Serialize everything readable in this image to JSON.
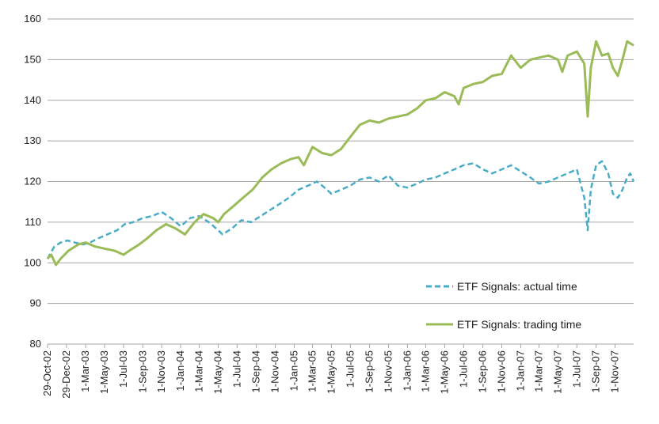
{
  "chart_data": {
    "type": "line",
    "title": "",
    "xlabel": "",
    "ylabel": "",
    "ylim": [
      80,
      160
    ],
    "yticks": [
      80,
      90,
      100,
      110,
      120,
      130,
      140,
      150,
      160
    ],
    "xlim": [
      "2002-10-29",
      "2007-12-31"
    ],
    "xtick_labels": [
      {
        "date": "2002-10-29",
        "label": "29-Oct-02"
      },
      {
        "date": "2002-12-29",
        "label": "29-Dec-02"
      },
      {
        "date": "2003-03-01",
        "label": "1-Mar-03"
      },
      {
        "date": "2003-05-01",
        "label": "1-May-03"
      },
      {
        "date": "2003-07-01",
        "label": "1-Jul-03"
      },
      {
        "date": "2003-09-01",
        "label": "1-Sep-03"
      },
      {
        "date": "2003-11-01",
        "label": "1-Nov-03"
      },
      {
        "date": "2004-01-01",
        "label": "1-Jan-04"
      },
      {
        "date": "2004-03-01",
        "label": "1-Mar-04"
      },
      {
        "date": "2004-05-01",
        "label": "1-May-04"
      },
      {
        "date": "2004-07-01",
        "label": "1-Jul-04"
      },
      {
        "date": "2004-09-01",
        "label": "1-Sep-04"
      },
      {
        "date": "2004-11-01",
        "label": "1-Nov-04"
      },
      {
        "date": "2005-01-01",
        "label": "1-Jan-05"
      },
      {
        "date": "2005-03-01",
        "label": "1-Mar-05"
      },
      {
        "date": "2005-05-01",
        "label": "1-May-05"
      },
      {
        "date": "2005-07-01",
        "label": "1-Jul-05"
      },
      {
        "date": "2005-09-01",
        "label": "1-Sep-05"
      },
      {
        "date": "2005-11-01",
        "label": "1-Nov-05"
      },
      {
        "date": "2006-01-01",
        "label": "1-Jan-06"
      },
      {
        "date": "2006-03-01",
        "label": "1-Mar-06"
      },
      {
        "date": "2006-05-01",
        "label": "1-May-06"
      },
      {
        "date": "2006-07-01",
        "label": "1-Jul-06"
      },
      {
        "date": "2006-09-01",
        "label": "1-Sep-06"
      },
      {
        "date": "2006-11-01",
        "label": "1-Nov-06"
      },
      {
        "date": "2007-01-01",
        "label": "1-Jan-07"
      },
      {
        "date": "2007-03-01",
        "label": "1-Mar-07"
      },
      {
        "date": "2007-05-01",
        "label": "1-May-07"
      },
      {
        "date": "2007-07-01",
        "label": "1-Jul-07"
      },
      {
        "date": "2007-09-01",
        "label": "1-Sep-07"
      },
      {
        "date": "2007-11-01",
        "label": "1-Nov-07"
      }
    ],
    "grid": "horizontal",
    "legend_position": "bottom-right",
    "series": [
      {
        "name": "ETF Signals: actual time",
        "color": "#4bacc6",
        "style": "dashed",
        "points": [
          [
            "2002-10-29",
            101
          ],
          [
            "2002-11-20",
            104
          ],
          [
            "2002-12-10",
            105
          ],
          [
            "2003-01-01",
            105.5
          ],
          [
            "2003-01-25",
            105
          ],
          [
            "2003-02-20",
            104.5
          ],
          [
            "2003-03-15",
            105
          ],
          [
            "2003-04-10",
            106
          ],
          [
            "2003-05-10",
            107
          ],
          [
            "2003-06-10",
            108
          ],
          [
            "2003-07-05",
            109.5
          ],
          [
            "2003-08-01",
            110
          ],
          [
            "2003-09-01",
            111
          ],
          [
            "2003-10-01",
            111.5
          ],
          [
            "2003-11-01",
            112.5
          ],
          [
            "2003-12-01",
            111
          ],
          [
            "2004-01-01",
            109
          ],
          [
            "2004-02-01",
            111
          ],
          [
            "2004-03-01",
            111.5
          ],
          [
            "2004-04-01",
            110
          ],
          [
            "2004-05-01",
            108
          ],
          [
            "2004-05-15",
            107
          ],
          [
            "2004-06-15",
            108.5
          ],
          [
            "2004-07-15",
            110.5
          ],
          [
            "2004-08-15",
            110
          ],
          [
            "2004-09-15",
            111.5
          ],
          [
            "2004-10-15",
            113
          ],
          [
            "2004-11-15",
            114.5
          ],
          [
            "2004-12-15",
            116
          ],
          [
            "2005-01-15",
            118
          ],
          [
            "2005-02-15",
            119
          ],
          [
            "2005-03-15",
            120
          ],
          [
            "2005-04-01",
            119
          ],
          [
            "2005-05-01",
            117
          ],
          [
            "2005-06-01",
            118
          ],
          [
            "2005-07-01",
            119
          ],
          [
            "2005-08-01",
            120.5
          ],
          [
            "2005-09-01",
            121
          ],
          [
            "2005-10-01",
            120
          ],
          [
            "2005-11-01",
            121.5
          ],
          [
            "2005-12-01",
            119
          ],
          [
            "2006-01-01",
            118.5
          ],
          [
            "2006-02-01",
            119.5
          ],
          [
            "2006-03-01",
            120.5
          ],
          [
            "2006-04-01",
            121
          ],
          [
            "2006-05-01",
            122
          ],
          [
            "2006-06-01",
            123
          ],
          [
            "2006-07-01",
            124
          ],
          [
            "2006-08-01",
            124.5
          ],
          [
            "2006-09-01",
            123
          ],
          [
            "2006-10-01",
            122
          ],
          [
            "2006-11-01",
            123
          ],
          [
            "2006-12-01",
            124
          ],
          [
            "2007-01-01",
            122.5
          ],
          [
            "2007-02-01",
            121
          ],
          [
            "2007-03-01",
            119.5
          ],
          [
            "2007-04-01",
            120
          ],
          [
            "2007-05-01",
            121
          ],
          [
            "2007-06-01",
            122
          ],
          [
            "2007-07-01",
            123
          ],
          [
            "2007-07-25",
            116
          ],
          [
            "2007-08-05",
            108
          ],
          [
            "2007-08-15",
            118
          ],
          [
            "2007-09-01",
            124
          ],
          [
            "2007-09-20",
            125
          ],
          [
            "2007-10-10",
            122
          ],
          [
            "2007-10-25",
            117
          ],
          [
            "2007-11-10",
            116
          ],
          [
            "2007-11-25",
            118
          ],
          [
            "2007-12-10",
            121
          ],
          [
            "2007-12-20",
            122
          ],
          [
            "2007-12-31",
            120
          ]
        ]
      },
      {
        "name": "ETF  Signals: trading time",
        "color": "#9bbb59",
        "style": "solid",
        "points": [
          [
            "2002-10-29",
            101
          ],
          [
            "2002-11-10",
            102
          ],
          [
            "2002-11-25",
            99.5
          ],
          [
            "2002-12-10",
            101
          ],
          [
            "2003-01-05",
            103
          ],
          [
            "2003-02-05",
            104.5
          ],
          [
            "2003-03-01",
            105
          ],
          [
            "2003-04-01",
            104
          ],
          [
            "2003-05-01",
            103.5
          ],
          [
            "2003-06-01",
            103
          ],
          [
            "2003-07-01",
            102
          ],
          [
            "2003-07-20",
            103
          ],
          [
            "2003-08-20",
            104.5
          ],
          [
            "2003-09-15",
            106
          ],
          [
            "2003-10-15",
            108
          ],
          [
            "2003-11-15",
            109.5
          ],
          [
            "2003-12-15",
            108.5
          ],
          [
            "2004-01-15",
            107
          ],
          [
            "2004-02-15",
            110
          ],
          [
            "2004-03-15",
            112
          ],
          [
            "2004-04-15",
            111
          ],
          [
            "2004-05-01",
            110
          ],
          [
            "2004-05-20",
            112
          ],
          [
            "2004-06-20",
            114
          ],
          [
            "2004-07-20",
            116
          ],
          [
            "2004-08-20",
            118
          ],
          [
            "2004-09-20",
            121
          ],
          [
            "2004-10-20",
            123
          ],
          [
            "2004-11-20",
            124.5
          ],
          [
            "2004-12-20",
            125.5
          ],
          [
            "2005-01-15",
            126
          ],
          [
            "2005-02-01",
            124
          ],
          [
            "2005-03-01",
            128.5
          ],
          [
            "2005-04-01",
            127
          ],
          [
            "2005-05-01",
            126.5
          ],
          [
            "2005-06-01",
            128
          ],
          [
            "2005-07-01",
            131
          ],
          [
            "2005-08-01",
            134
          ],
          [
            "2005-09-01",
            135
          ],
          [
            "2005-10-01",
            134.5
          ],
          [
            "2005-11-01",
            135.5
          ],
          [
            "2005-12-01",
            136
          ],
          [
            "2006-01-01",
            136.5
          ],
          [
            "2006-02-01",
            138
          ],
          [
            "2006-03-01",
            140
          ],
          [
            "2006-04-01",
            140.5
          ],
          [
            "2006-05-01",
            142
          ],
          [
            "2006-06-01",
            141
          ],
          [
            "2006-06-15",
            139
          ],
          [
            "2006-07-01",
            143
          ],
          [
            "2006-08-01",
            144
          ],
          [
            "2006-09-01",
            144.5
          ],
          [
            "2006-10-01",
            146
          ],
          [
            "2006-11-01",
            146.5
          ],
          [
            "2006-12-01",
            151
          ],
          [
            "2007-01-01",
            148
          ],
          [
            "2007-02-01",
            150
          ],
          [
            "2007-03-01",
            150.5
          ],
          [
            "2007-04-01",
            151
          ],
          [
            "2007-05-01",
            150
          ],
          [
            "2007-05-15",
            147
          ],
          [
            "2007-06-01",
            151
          ],
          [
            "2007-07-01",
            152
          ],
          [
            "2007-07-25",
            149
          ],
          [
            "2007-08-05",
            136
          ],
          [
            "2007-08-15",
            148
          ],
          [
            "2007-09-01",
            154.5
          ],
          [
            "2007-09-20",
            151
          ],
          [
            "2007-10-10",
            151.5
          ],
          [
            "2007-10-25",
            148
          ],
          [
            "2007-11-10",
            146
          ],
          [
            "2007-11-25",
            150
          ],
          [
            "2007-12-10",
            154.5
          ],
          [
            "2007-12-20",
            154
          ],
          [
            "2007-12-31",
            153.5
          ]
        ]
      }
    ]
  }
}
